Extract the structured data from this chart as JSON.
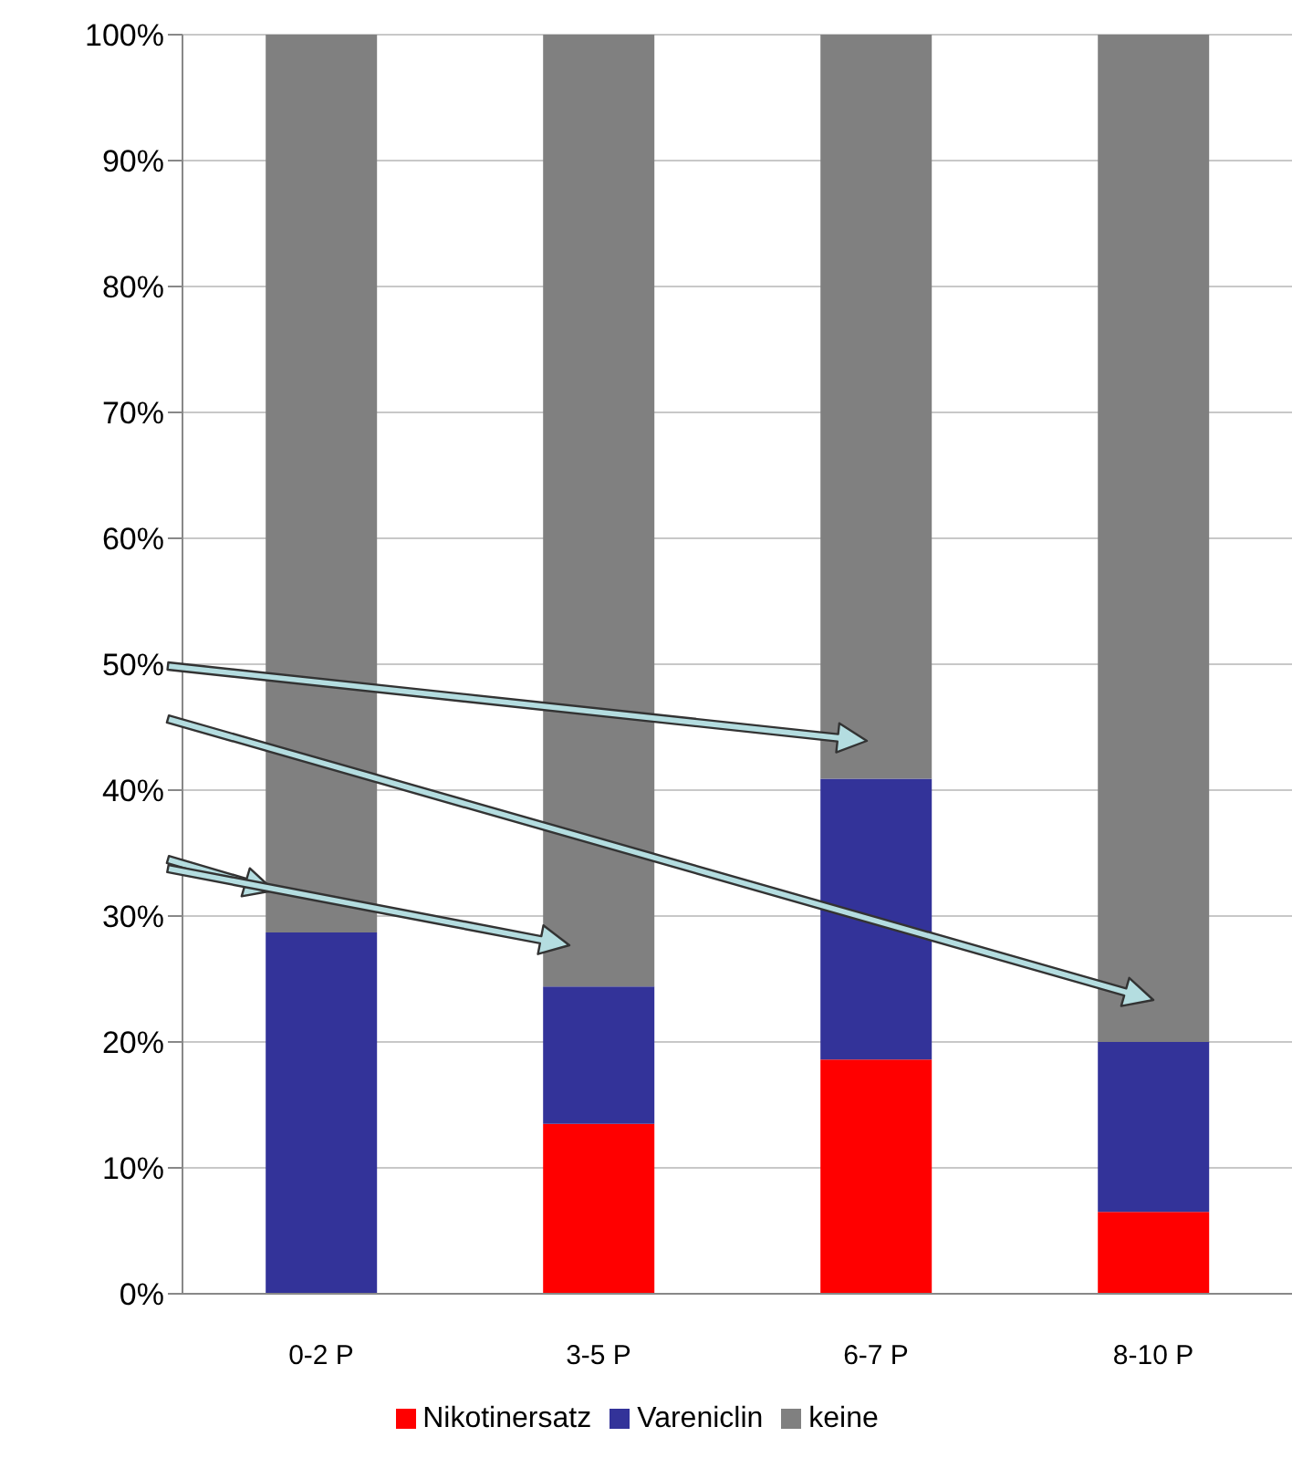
{
  "chart_data": {
    "type": "bar",
    "stacked": true,
    "categories": [
      "0-2 P",
      "3-5 P",
      "6-7 P",
      "8-10 P"
    ],
    "series": [
      {
        "name": "Nikotinersatz",
        "color": "#ff0000",
        "values": [
          0,
          13.5,
          18.6,
          6.5
        ]
      },
      {
        "name": "Vareniclin",
        "color": "#333399",
        "values": [
          28.7,
          10.9,
          22.3,
          13.5
        ]
      },
      {
        "name": "keine",
        "color": "#808080",
        "values": [
          71.3,
          75.6,
          59.1,
          80.0
        ]
      }
    ],
    "ylim": [
      0,
      100
    ],
    "yticks": [
      {
        "value": 0,
        "label": "0%"
      },
      {
        "value": 10,
        "label": "10%"
      },
      {
        "value": 20,
        "label": "20%"
      },
      {
        "value": 30,
        "label": "30%"
      },
      {
        "value": 40,
        "label": "40%"
      },
      {
        "value": 50,
        "label": "50%"
      },
      {
        "value": 60,
        "label": "60%"
      },
      {
        "value": 70,
        "label": "70%"
      },
      {
        "value": 80,
        "label": "80%"
      },
      {
        "value": 90,
        "label": "90%"
      },
      {
        "value": 100,
        "label": "100%"
      }
    ],
    "grid": "y",
    "legend": "bottom"
  }
}
